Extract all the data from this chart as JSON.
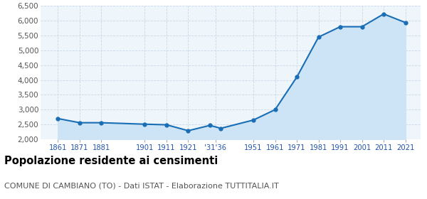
{
  "years": [
    1861,
    1871,
    1881,
    1901,
    1911,
    1921,
    1931,
    1936,
    1951,
    1961,
    1971,
    1981,
    1991,
    2001,
    2011,
    2021
  ],
  "population": [
    2700,
    2560,
    2560,
    2510,
    2490,
    2290,
    2470,
    2370,
    2650,
    3000,
    4100,
    5450,
    5800,
    5800,
    6230,
    5940
  ],
  "line_color": "#1a6eb5",
  "fill_color": "#cce4f5",
  "marker_color": "#1a6eb5",
  "grid_color": "#c8d8e8",
  "background_color": "#eef5fb",
  "ylim": [
    2000,
    6500
  ],
  "yticks": [
    2000,
    2500,
    3000,
    3500,
    4000,
    4500,
    5000,
    5500,
    6000,
    6500
  ],
  "title": "Popolazione residente ai censimenti",
  "subtitle": "COMUNE DI CAMBIANO (TO) - Dati ISTAT - Elaborazione TUTTITALIA.IT",
  "title_fontsize": 10.5,
  "subtitle_fontsize": 8,
  "x_tick_positions": [
    1861,
    1871,
    1881,
    1901,
    1911,
    1921,
    1933.5,
    1951,
    1961,
    1971,
    1981,
    1991,
    2001,
    2011,
    2021
  ],
  "x_tick_labels": [
    "1861",
    "1871",
    "1881",
    "1901",
    "1911",
    "1921",
    "'31'36",
    "1951",
    "1961",
    "1971",
    "1981",
    "1991",
    "2001",
    "2011",
    "2021"
  ],
  "xlim": [
    1853,
    2028
  ]
}
